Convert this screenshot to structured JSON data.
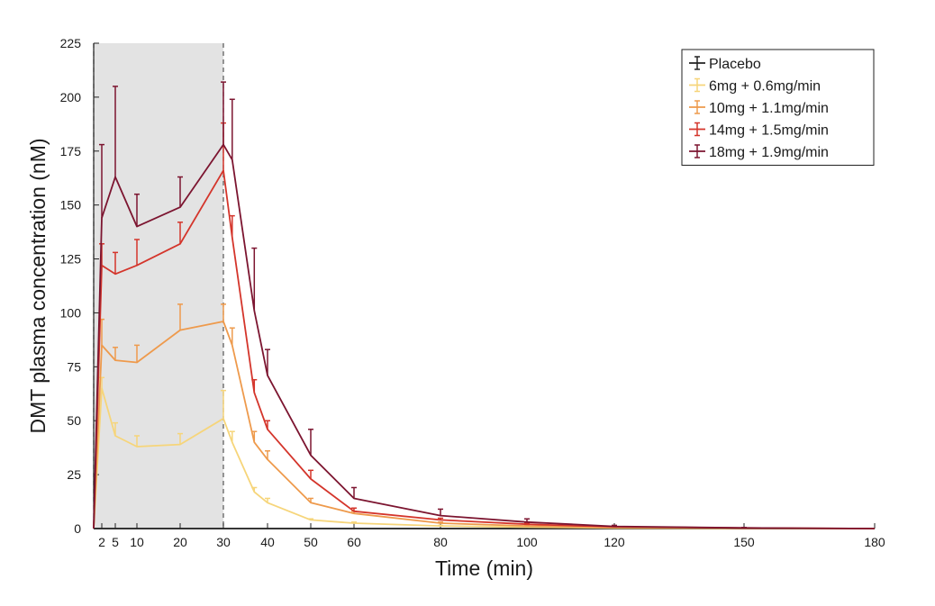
{
  "chart_data": {
    "type": "line",
    "title": "",
    "xlabel": "Time (min)",
    "ylabel": "DMT plasma concentration (nM)",
    "xlim": [
      0,
      180
    ],
    "ylim": [
      0,
      225
    ],
    "xticks": [
      2,
      5,
      10,
      20,
      30,
      40,
      50,
      60,
      80,
      100,
      120,
      150,
      180
    ],
    "yticks": [
      0,
      25,
      50,
      75,
      100,
      125,
      150,
      175,
      200,
      225
    ],
    "x_axis_note": "nonlinear time axis",
    "shaded_region": {
      "x": [
        0,
        30
      ],
      "color": "#e3e3e3"
    },
    "vlines": [
      0,
      30
    ],
    "legend_position": "top-right",
    "grid": false,
    "error_bars": "upper only",
    "series": [
      {
        "name": "Placebo",
        "color": "#222222",
        "x": [
          0,
          2,
          5,
          10,
          20,
          30,
          32,
          37,
          40,
          50,
          60,
          80,
          100,
          120,
          150,
          180
        ],
        "y": [
          0,
          0,
          0,
          0,
          0,
          0,
          0,
          0,
          0,
          0,
          0,
          0,
          0,
          0,
          0,
          0
        ],
        "err": [
          0,
          0,
          0,
          0,
          0,
          0,
          0,
          0,
          0,
          0,
          0,
          0,
          0,
          0,
          0,
          0
        ]
      },
      {
        "name": "6mg + 0.6mg/min",
        "color": "#f6d57a",
        "x": [
          0,
          2,
          5,
          10,
          20,
          30,
          32,
          37,
          40,
          50,
          60,
          80,
          100,
          120,
          150,
          180
        ],
        "y": [
          0,
          65,
          43,
          38,
          39,
          51,
          40,
          17,
          12,
          4,
          2.5,
          1.2,
          0.7,
          0.3,
          0.1,
          0
        ],
        "err": [
          0,
          5,
          6,
          5,
          5,
          13,
          5,
          2,
          2,
          0.5,
          0.5,
          0.3,
          0.2,
          0.1,
          0,
          0
        ]
      },
      {
        "name": "10mg + 1.1mg/min",
        "color": "#ee9a4c",
        "x": [
          0,
          2,
          5,
          10,
          20,
          30,
          32,
          37,
          40,
          50,
          60,
          80,
          100,
          120,
          150,
          180
        ],
        "y": [
          0,
          85,
          78,
          77,
          92,
          96,
          85,
          40,
          32,
          12,
          7,
          2.5,
          1.2,
          0.6,
          0.2,
          0
        ],
        "err": [
          0,
          12,
          6,
          8,
          12,
          8,
          8,
          5,
          4,
          2,
          1,
          0.5,
          0.3,
          0.2,
          0.1,
          0
        ]
      },
      {
        "name": "14mg + 1.5mg/min",
        "color": "#d4352b",
        "x": [
          0,
          2,
          5,
          10,
          20,
          30,
          32,
          37,
          40,
          50,
          60,
          80,
          100,
          120,
          150,
          180
        ],
        "y": [
          0,
          122,
          118,
          122,
          132,
          166,
          135,
          63,
          46,
          23,
          8,
          4,
          2,
          0.8,
          0.3,
          0
        ],
        "err": [
          0,
          10,
          10,
          12,
          10,
          22,
          10,
          6,
          4,
          4,
          1.5,
          0.8,
          0.5,
          0.2,
          0.1,
          0
        ]
      },
      {
        "name": "18mg + 1.9mg/min",
        "color": "#7c1530",
        "x": [
          0,
          2,
          5,
          10,
          20,
          30,
          32,
          37,
          40,
          50,
          60,
          80,
          100,
          120,
          150,
          180
        ],
        "y": [
          0,
          144,
          163,
          140,
          149,
          178,
          171,
          101,
          71,
          34,
          14,
          6,
          3,
          1,
          0.3,
          0
        ],
        "err": [
          0,
          34,
          42,
          15,
          14,
          29,
          28,
          29,
          12,
          12,
          5,
          3,
          1.5,
          0.5,
          0.2,
          0
        ]
      }
    ]
  }
}
